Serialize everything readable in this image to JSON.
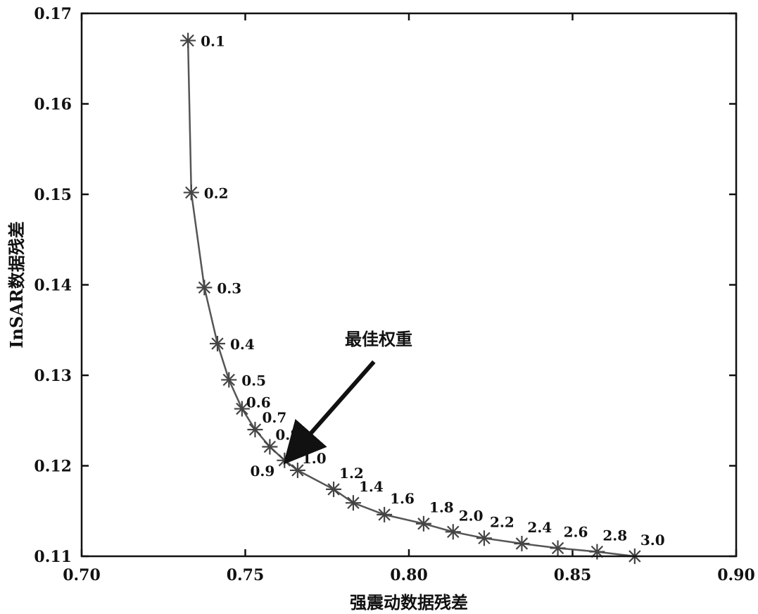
{
  "chart_data": {
    "type": "line",
    "xlabel": "强震动数据残差",
    "ylabel": "InSAR数据残差",
    "xlim": [
      0.7,
      0.9
    ],
    "ylim": [
      0.11,
      0.17
    ],
    "x_ticks": [
      "0.70",
      "0.75",
      "0.80",
      "0.85",
      "0.90"
    ],
    "y_ticks": [
      "0.11",
      "0.12",
      "0.13",
      "0.14",
      "0.15",
      "0.16",
      "0.17"
    ],
    "grid": false,
    "line_color": "#555555",
    "marker": "asterisk",
    "points": [
      {
        "label": "0.1",
        "x": 0.7325,
        "y": 0.167
      },
      {
        "label": "0.2",
        "x": 0.7335,
        "y": 0.1502
      },
      {
        "label": "0.3",
        "x": 0.7375,
        "y": 0.1397
      },
      {
        "label": "0.4",
        "x": 0.7415,
        "y": 0.1335
      },
      {
        "label": "0.5",
        "x": 0.745,
        "y": 0.1295
      },
      {
        "label": "0.6",
        "x": 0.749,
        "y": 0.1263
      },
      {
        "label": "0.7",
        "x": 0.753,
        "y": 0.124
      },
      {
        "label": "0.8",
        "x": 0.7575,
        "y": 0.1221
      },
      {
        "label": "0.9",
        "x": 0.762,
        "y": 0.1206
      },
      {
        "label": "1.0",
        "x": 0.766,
        "y": 0.1195
      },
      {
        "label": "1.2",
        "x": 0.777,
        "y": 0.1174
      },
      {
        "label": "1.4",
        "x": 0.783,
        "y": 0.1159
      },
      {
        "label": "1.6",
        "x": 0.7925,
        "y": 0.1146
      },
      {
        "label": "1.8",
        "x": 0.8045,
        "y": 0.1136
      },
      {
        "label": "2.0",
        "x": 0.8135,
        "y": 0.1127
      },
      {
        "label": "2.2",
        "x": 0.823,
        "y": 0.112
      },
      {
        "label": "2.4",
        "x": 0.8345,
        "y": 0.1114
      },
      {
        "label": "2.6",
        "x": 0.8455,
        "y": 0.1109
      },
      {
        "label": "2.8",
        "x": 0.8575,
        "y": 0.1105
      },
      {
        "label": "3.0",
        "x": 0.869,
        "y": 0.11
      }
    ],
    "annotation": {
      "text": "最佳权重",
      "points_to": "0.9"
    }
  }
}
